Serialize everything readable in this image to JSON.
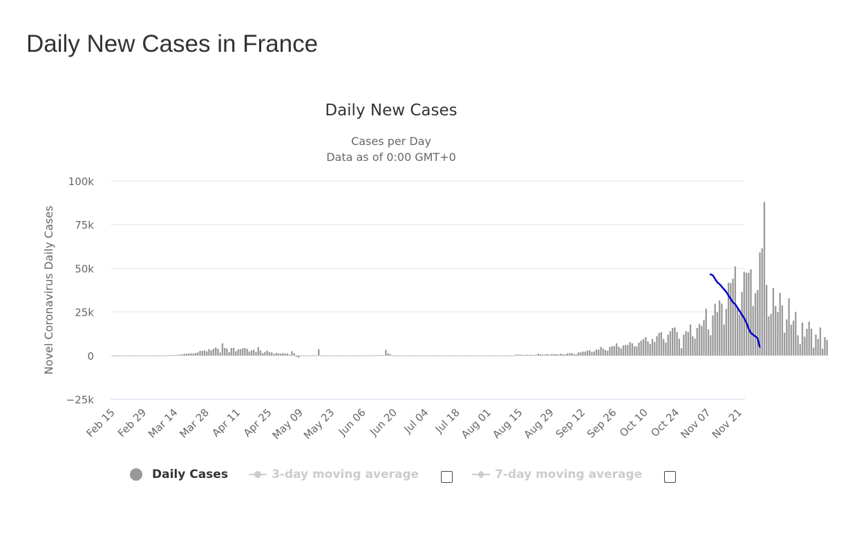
{
  "page_title": "Daily New Cases in France",
  "chart_data": {
    "type": "bar",
    "title": "Daily New Cases",
    "subtitle_line1": "Cases per Day",
    "subtitle_line2": "Data as of 0:00 GMT+0",
    "ylabel": "Novel Coronavirus Daily Cases",
    "xlabel": "",
    "ylim": [
      -25000,
      100000
    ],
    "y_ticks": [
      100000,
      75000,
      50000,
      25000,
      0,
      -25000
    ],
    "y_tick_labels": [
      "100k",
      "75k",
      "50k",
      "25k",
      "0",
      "−25k"
    ],
    "x_start": "Feb 15",
    "x_ticks": [
      "Feb 15",
      "Feb 29",
      "Mar 14",
      "Mar 28",
      "Apr 11",
      "Apr 25",
      "May 09",
      "May 23",
      "Jun 06",
      "Jun 20",
      "Jul 04",
      "Jul 18",
      "Aug 01",
      "Aug 15",
      "Aug 29",
      "Sep 12",
      "Sep 26",
      "Oct 10",
      "Oct 24",
      "Nov 07",
      "Nov 21"
    ],
    "grid": true,
    "bar_color": "#999999",
    "series": [
      {
        "name": "Daily Cases",
        "values": [
          0,
          0,
          0,
          0,
          0,
          0,
          0,
          0,
          0,
          0,
          0,
          0,
          0,
          0,
          0,
          0,
          0,
          0,
          0,
          0,
          0,
          0,
          0,
          0,
          100,
          100,
          200,
          200,
          300,
          500,
          500,
          700,
          1000,
          1100,
          1200,
          1300,
          1200,
          1500,
          1800,
          2700,
          2700,
          3000,
          2400,
          3700,
          3000,
          3800,
          4600,
          3900,
          1800,
          7000,
          4300,
          4000,
          1900,
          4300,
          4400,
          2400,
          3600,
          3700,
          4200,
          4300,
          3900,
          2300,
          3000,
          3300,
          2000,
          4800,
          2900,
          1300,
          2100,
          2800,
          2000,
          1800,
          900,
          1500,
          1300,
          1100,
          1400,
          1200,
          1200,
          500,
          2500,
          1300,
          -700,
          -1200,
          0,
          0,
          0,
          0,
          0,
          0,
          100,
          0,
          3700,
          0,
          0,
          0,
          0,
          0,
          0,
          0,
          0,
          0,
          0,
          0,
          0,
          0,
          0,
          0,
          0,
          0,
          0,
          0,
          0,
          0,
          100,
          100,
          0,
          100,
          0,
          200,
          0,
          200,
          3300,
          1200,
          800,
          0,
          0,
          0,
          0,
          0,
          0,
          0,
          0,
          0,
          0,
          0,
          0,
          0,
          0,
          0,
          0,
          0,
          0,
          0,
          0,
          0,
          0,
          0,
          0,
          0,
          0,
          0,
          0,
          0,
          0,
          0,
          0,
          0,
          0,
          0,
          0,
          0,
          0,
          0,
          0,
          0,
          0,
          0,
          0,
          0,
          0,
          0,
          0,
          0,
          0,
          0,
          0,
          0,
          0,
          0,
          500,
          600,
          500,
          400,
          400,
          500,
          400,
          500,
          200,
          400,
          1100,
          700,
          600,
          500,
          900,
          500,
          700,
          900,
          800,
          600,
          1000,
          800,
          600,
          1200,
          1300,
          1500,
          900,
          700,
          1900,
          1800,
          2300,
          2300,
          2900,
          3000,
          2000,
          2400,
          3500,
          3400,
          4900,
          4000,
          3100,
          2700,
          4900,
          5400,
          5400,
          7000,
          5000,
          4100,
          5800,
          6100,
          6100,
          7700,
          7000,
          5400,
          5200,
          7400,
          8500,
          9400,
          10600,
          8200,
          6700,
          9500,
          7800,
          11000,
          13000,
          13500,
          9500,
          7500,
          12000,
          14000,
          15800,
          16100,
          13500,
          9600,
          4200,
          12000,
          14000,
          13500,
          17800,
          11000,
          9700,
          15800,
          18100,
          17000,
          20300,
          26900,
          14900,
          11600,
          23000,
          29700,
          24900,
          31600,
          29800,
          17800,
          26700,
          41700,
          41600,
          44000,
          51100,
          27200,
          23800,
          36400,
          48000,
          47400,
          47400,
          49400,
          28400,
          35700,
          37500,
          59100,
          61400,
          88000,
          40400,
          22500,
          23900,
          38600,
          28400,
          25000,
          35900,
          28800,
          13100,
          20700,
          32800,
          17700,
          20000,
          25000,
          11600,
          6500,
          18900,
          10800,
          15300,
          19400,
          15400,
          4500,
          12100,
          9500,
          16100,
          4000,
          10600,
          9000
        ]
      }
    ],
    "trend_line": {
      "color": "#0000cc",
      "x_start": "Nov 08",
      "x_end": "Nov 30",
      "values": [
        46500,
        46000,
        44000,
        42000,
        41000,
        39500,
        38000,
        36500,
        34500,
        32500,
        30500,
        29500,
        27500,
        25500,
        23500,
        21500,
        19000,
        15500,
        13000,
        12000,
        11000,
        10000,
        5000
      ]
    },
    "legend": {
      "items": [
        {
          "label": "Daily Cases",
          "active": true
        },
        {
          "label": "3-day moving average",
          "active": false
        },
        {
          "label": "7-day moving average",
          "active": false
        }
      ]
    }
  }
}
